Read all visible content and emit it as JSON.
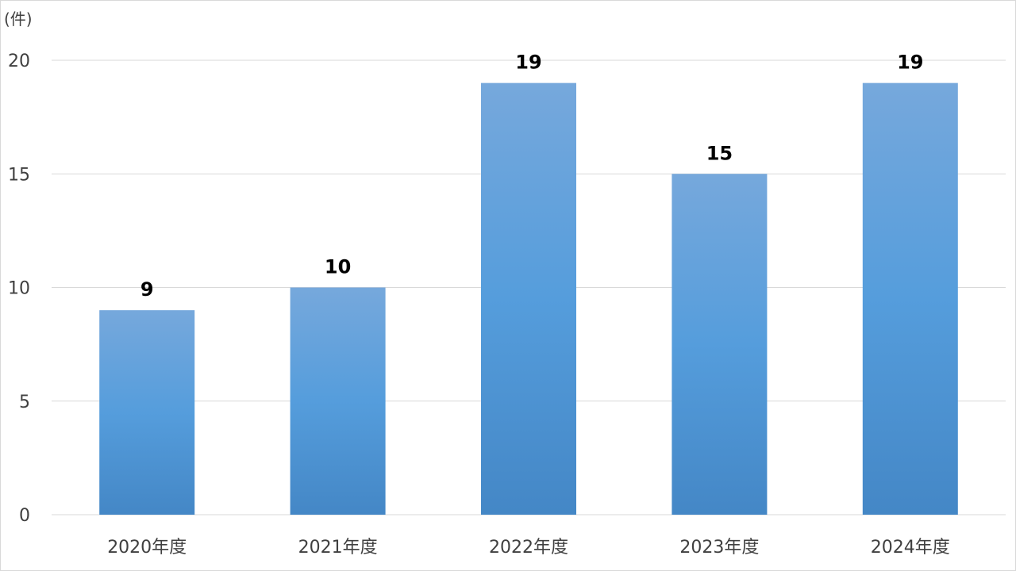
{
  "chart_data": {
    "type": "bar",
    "title": "",
    "xlabel": "",
    "ylabel": "(件)",
    "categories": [
      "2020年度",
      "2021年度",
      "2022年度",
      "2023年度",
      "2024年度"
    ],
    "values": [
      9,
      10,
      19,
      15,
      19
    ],
    "ylim": [
      0,
      20
    ],
    "yticks": [
      "0",
      "5",
      "10",
      "15",
      "20"
    ],
    "grid": true,
    "legend": "none",
    "data_labels": true,
    "colors": {
      "bar_top": "#76a8dc",
      "bar_mid": "#559ddc",
      "bar_bottom": "#4487c6",
      "grid": "#d9d9d9"
    }
  }
}
